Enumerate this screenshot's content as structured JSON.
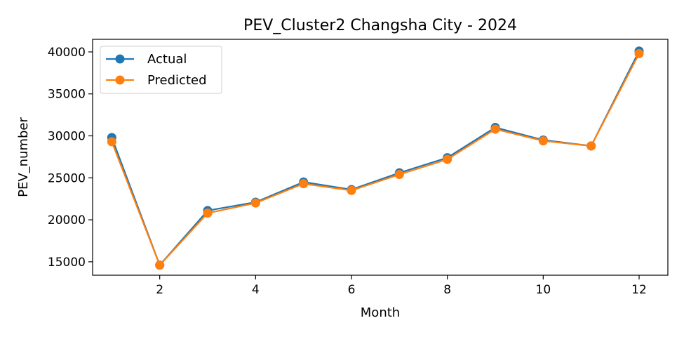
{
  "chart_data": {
    "type": "line",
    "title": "PEV_Cluster2 Changsha City - 2024",
    "xlabel": "Month",
    "ylabel": "PEV_number",
    "x": [
      1,
      2,
      3,
      4,
      5,
      6,
      7,
      8,
      9,
      10,
      11,
      12
    ],
    "xlim": [
      0.6,
      12.6
    ],
    "ylim": [
      13400,
      41500
    ],
    "xticks": [
      2,
      4,
      6,
      8,
      10,
      12
    ],
    "yticks": [
      15000,
      20000,
      25000,
      30000,
      35000,
      40000
    ],
    "grid": false,
    "legend_position": "upper-left",
    "series": [
      {
        "name": "Actual",
        "color": "#1f77b4",
        "values": [
          29800,
          14600,
          21100,
          22100,
          24500,
          23600,
          25600,
          27400,
          31000,
          29500,
          28800,
          40100
        ]
      },
      {
        "name": "Predicted",
        "color": "#ff7f0e",
        "values": [
          29300,
          14600,
          20800,
          22000,
          24300,
          23500,
          25400,
          27200,
          30800,
          29400,
          28800,
          39800
        ]
      }
    ]
  }
}
